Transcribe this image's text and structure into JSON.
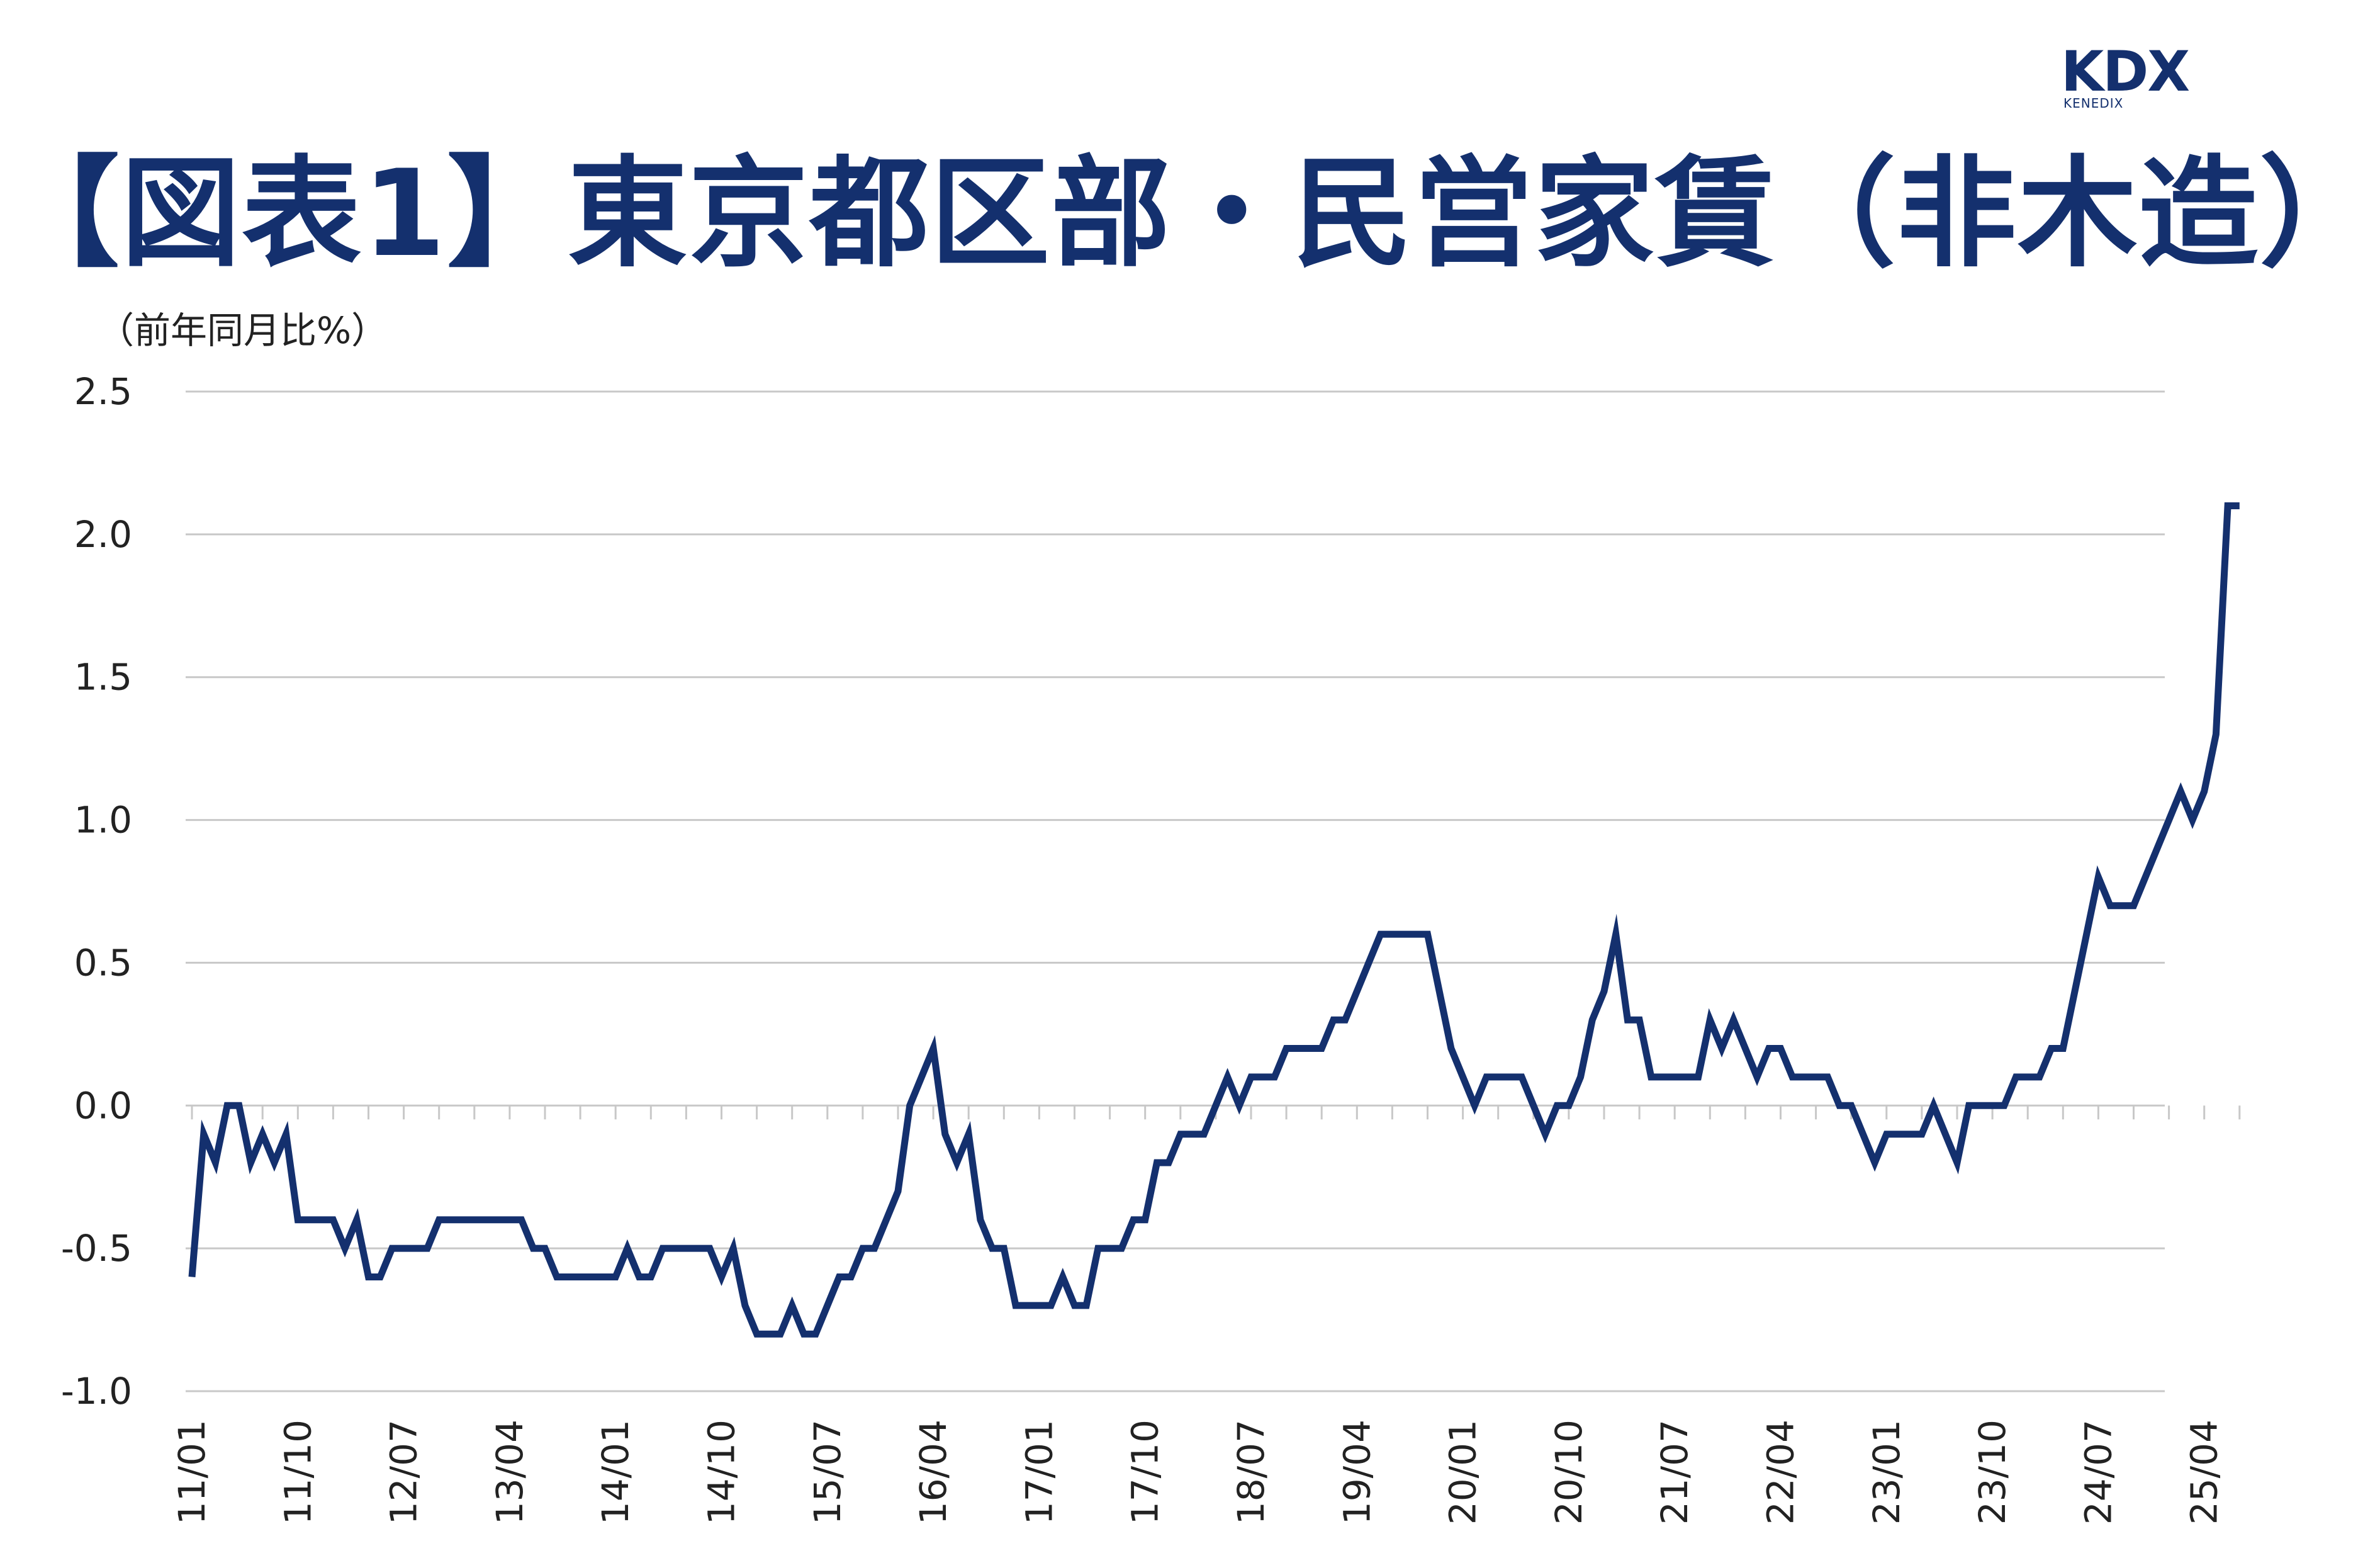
{
  "title": "【図表1】東京都区部・民営家賃（非木造）",
  "logo": {
    "mark": "KDX",
    "sub": "KENEDIX"
  },
  "colors": {
    "title": "#14306e",
    "line": "#14306e",
    "grid": "#c8c8c8"
  },
  "chart_data": {
    "type": "line",
    "ylabel": "（前年同月比%）",
    "ylim": [
      -1.0,
      2.5
    ],
    "yticks": [
      "2.5",
      "2.0",
      "1.5",
      "1.0",
      "0.5",
      "0.0",
      "-0.5",
      "-1.0"
    ],
    "xtick_labels": [
      "11/01",
      "11/10",
      "12/07",
      "13/04",
      "14/01",
      "14/10",
      "15/07",
      "16/04",
      "17/01",
      "17/10",
      "18/07",
      "19/04",
      "20/01",
      "20/10",
      "21/07",
      "22/04",
      "23/01",
      "23/10",
      "24/07",
      "25/04"
    ],
    "grid": "horizontal",
    "series": [
      {
        "start": "2011-01",
        "values": [
          -0.6,
          -0.1,
          -0.2,
          0.0,
          0.0,
          -0.2,
          -0.1,
          -0.2,
          -0.1,
          -0.4,
          -0.4,
          -0.4,
          -0.4,
          -0.5,
          -0.4,
          -0.6,
          -0.6,
          -0.5,
          -0.5,
          -0.5,
          -0.5,
          -0.4,
          -0.4,
          -0.4,
          -0.4,
          -0.4,
          -0.4,
          -0.4,
          -0.4,
          -0.5,
          -0.5,
          -0.6,
          -0.6,
          -0.6,
          -0.6,
          -0.6,
          -0.6,
          -0.5,
          -0.6,
          -0.6,
          -0.5,
          -0.5,
          -0.5,
          -0.5,
          -0.5,
          -0.6,
          -0.5,
          -0.7,
          -0.8,
          -0.8,
          -0.8,
          -0.7,
          -0.8,
          -0.8,
          -0.7,
          -0.6,
          -0.6,
          -0.5,
          -0.5,
          -0.4,
          -0.3,
          0.0,
          0.1,
          0.2,
          -0.1,
          -0.2,
          -0.1,
          -0.4,
          -0.5,
          -0.5,
          -0.7,
          -0.7,
          -0.7,
          -0.7,
          -0.6,
          -0.7,
          -0.7,
          -0.5,
          -0.5,
          -0.5,
          -0.4,
          -0.4,
          -0.2,
          -0.2,
          -0.1,
          -0.1,
          -0.1,
          0.0,
          0.1,
          0.0,
          0.1,
          0.1,
          0.1,
          0.2,
          0.2,
          0.2,
          0.2,
          0.3,
          0.3,
          0.4,
          0.5,
          0.6,
          0.6,
          0.6,
          0.6,
          0.6,
          0.4,
          0.2,
          0.1,
          0.0,
          0.1,
          0.1,
          0.1,
          0.1,
          0.0,
          -0.1,
          0.0,
          0.0,
          0.1,
          0.3,
          0.4,
          0.6,
          0.3,
          0.3,
          0.1,
          0.1,
          0.1,
          0.1,
          0.1,
          0.3,
          0.2,
          0.3,
          0.2,
          0.1,
          0.2,
          0.2,
          0.1,
          0.1,
          0.1,
          0.1,
          0.0,
          0.0,
          -0.1,
          -0.2,
          -0.1,
          -0.1,
          -0.1,
          -0.1,
          0.0,
          -0.1,
          -0.2,
          0.0,
          0.0,
          0.0,
          0.0,
          0.1,
          0.1,
          0.1,
          0.2,
          0.2,
          0.4,
          0.6,
          0.8,
          0.7,
          0.7,
          0.7,
          0.8,
          0.9,
          1.0,
          1.1,
          1.0,
          1.1,
          1.3,
          2.1,
          2.1
        ]
      }
    ]
  }
}
